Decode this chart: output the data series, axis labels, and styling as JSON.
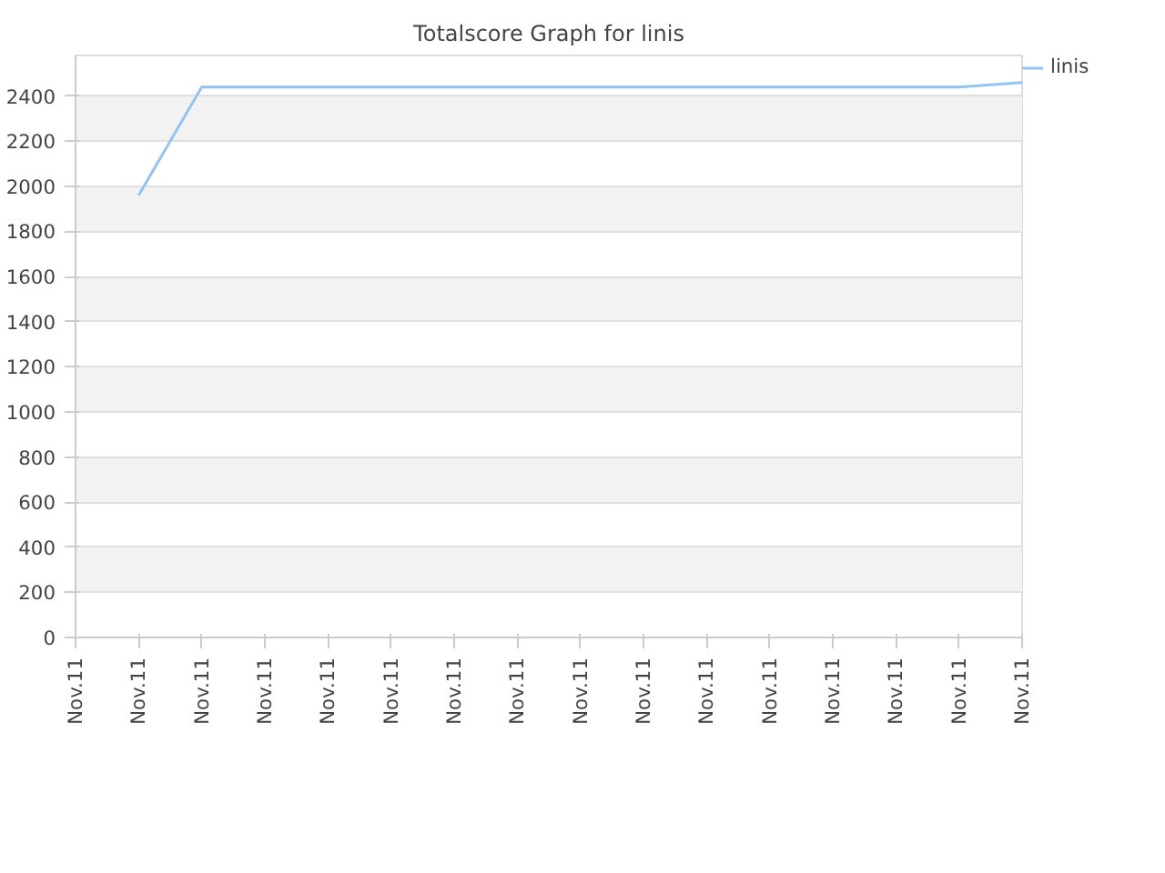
{
  "chart_data": {
    "type": "line",
    "title": "Totalscore Graph for linis",
    "categories": [
      "Nov.11",
      "Nov.11",
      "Nov.11",
      "Nov.11",
      "Nov.11",
      "Nov.11",
      "Nov.11",
      "Nov.11",
      "Nov.11",
      "Nov.11",
      "Nov.11",
      "Nov.11",
      "Nov.11",
      "Nov.11",
      "Nov.11",
      "Nov.11"
    ],
    "series": [
      {
        "name": "linis",
        "color": "#90c4f2",
        "values": [
          null,
          1960,
          2440,
          2440,
          2440,
          2440,
          2440,
          2440,
          2440,
          2440,
          2440,
          2440,
          2440,
          2440,
          2440,
          2460
        ]
      }
    ],
    "ylim": [
      0,
      2580
    ],
    "yticks": [
      0,
      200,
      400,
      600,
      800,
      1000,
      1200,
      1400,
      1600,
      1800,
      2000,
      2200,
      2400
    ],
    "grid": "y",
    "legend": "top right",
    "marker": "none",
    "line_style": "solid"
  }
}
